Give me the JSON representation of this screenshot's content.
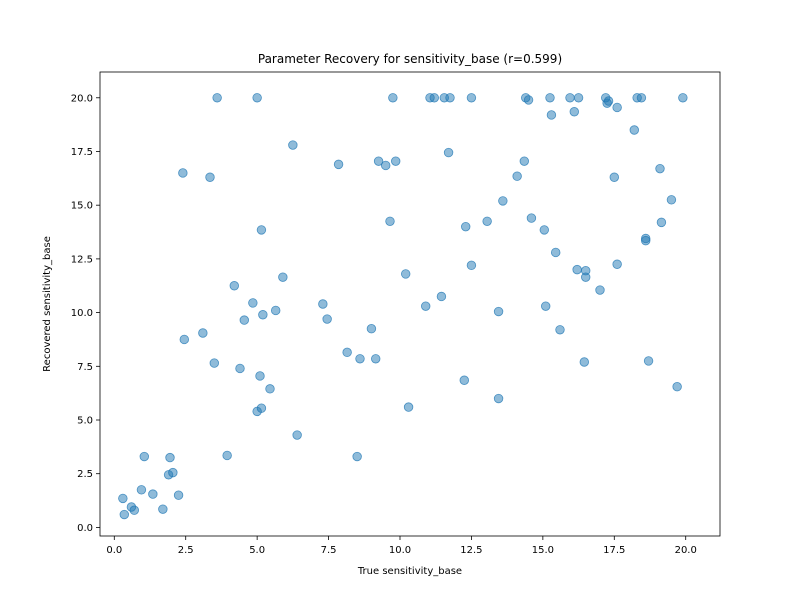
{
  "chart_data": {
    "type": "scatter",
    "title": "Parameter Recovery for sensitivity_base (r=0.599)",
    "xlabel": "True sensitivity_base",
    "ylabel": "Recovered sensitivity_base",
    "xlim": [
      -0.5,
      21.2
    ],
    "ylim": [
      -0.4,
      21.2
    ],
    "xticks": [
      0.0,
      2.5,
      5.0,
      7.5,
      10.0,
      12.5,
      15.0,
      17.5,
      20.0
    ],
    "xtick_labels": [
      "0.0",
      "2.5",
      "5.0",
      "7.5",
      "10.0",
      "12.5",
      "15.0",
      "17.5",
      "20.0"
    ],
    "yticks": [
      0.0,
      2.5,
      5.0,
      7.5,
      10.0,
      12.5,
      15.0,
      17.5,
      20.0
    ],
    "ytick_labels": [
      "0.0",
      "2.5",
      "5.0",
      "7.5",
      "10.0",
      "12.5",
      "15.0",
      "17.5",
      "20.0"
    ],
    "grid": false,
    "marker_color": "#1f77b4",
    "marker_opacity": 0.5,
    "points": [
      [
        0.3,
        1.35
      ],
      [
        0.35,
        0.6
      ],
      [
        0.6,
        0.95
      ],
      [
        0.7,
        0.8
      ],
      [
        0.95,
        1.75
      ],
      [
        1.05,
        3.3
      ],
      [
        1.35,
        1.55
      ],
      [
        1.7,
        0.85
      ],
      [
        1.9,
        2.45
      ],
      [
        1.95,
        3.25
      ],
      [
        2.05,
        2.55
      ],
      [
        2.25,
        1.5
      ],
      [
        2.4,
        16.5
      ],
      [
        2.45,
        8.75
      ],
      [
        3.1,
        9.05
      ],
      [
        3.35,
        16.3
      ],
      [
        3.5,
        7.65
      ],
      [
        3.6,
        20.0
      ],
      [
        3.95,
        3.35
      ],
      [
        4.2,
        11.25
      ],
      [
        4.4,
        7.4
      ],
      [
        4.55,
        9.65
      ],
      [
        4.85,
        10.45
      ],
      [
        5.0,
        20.0
      ],
      [
        5.0,
        5.4
      ],
      [
        5.1,
        7.05
      ],
      [
        5.15,
        5.55
      ],
      [
        5.15,
        13.85
      ],
      [
        5.2,
        9.9
      ],
      [
        5.45,
        6.45
      ],
      [
        5.65,
        10.1
      ],
      [
        5.9,
        11.65
      ],
      [
        6.25,
        17.8
      ],
      [
        6.4,
        4.3
      ],
      [
        7.3,
        10.4
      ],
      [
        7.45,
        9.7
      ],
      [
        7.85,
        16.9
      ],
      [
        8.15,
        8.15
      ],
      [
        8.5,
        3.3
      ],
      [
        8.6,
        7.85
      ],
      [
        9.0,
        9.25
      ],
      [
        9.15,
        7.85
      ],
      [
        9.25,
        17.05
      ],
      [
        9.5,
        16.85
      ],
      [
        9.65,
        14.25
      ],
      [
        9.75,
        20.0
      ],
      [
        9.85,
        17.05
      ],
      [
        10.2,
        11.8
      ],
      [
        10.3,
        5.6
      ],
      [
        10.9,
        10.3
      ],
      [
        11.05,
        20.0
      ],
      [
        11.2,
        20.0
      ],
      [
        11.45,
        10.75
      ],
      [
        11.55,
        20.0
      ],
      [
        11.7,
        17.45
      ],
      [
        11.75,
        20.0
      ],
      [
        12.25,
        6.85
      ],
      [
        12.3,
        14.0
      ],
      [
        12.5,
        12.2
      ],
      [
        12.5,
        20.0
      ],
      [
        13.05,
        14.25
      ],
      [
        13.45,
        10.05
      ],
      [
        13.45,
        6.0
      ],
      [
        13.6,
        15.2
      ],
      [
        14.1,
        16.35
      ],
      [
        14.35,
        17.05
      ],
      [
        14.4,
        20.0
      ],
      [
        14.5,
        19.9
      ],
      [
        14.6,
        14.4
      ],
      [
        15.05,
        13.85
      ],
      [
        15.1,
        10.3
      ],
      [
        15.25,
        20.0
      ],
      [
        15.3,
        19.2
      ],
      [
        15.45,
        12.8
      ],
      [
        15.6,
        9.2
      ],
      [
        15.95,
        20.0
      ],
      [
        16.1,
        19.35
      ],
      [
        16.2,
        12.0
      ],
      [
        16.25,
        20.0
      ],
      [
        16.45,
        7.7
      ],
      [
        16.5,
        11.95
      ],
      [
        16.5,
        11.65
      ],
      [
        17.0,
        11.05
      ],
      [
        17.2,
        20.0
      ],
      [
        17.25,
        19.75
      ],
      [
        17.3,
        19.85
      ],
      [
        17.5,
        16.3
      ],
      [
        17.6,
        19.55
      ],
      [
        17.6,
        12.25
      ],
      [
        18.2,
        18.5
      ],
      [
        18.3,
        20.0
      ],
      [
        18.45,
        20.0
      ],
      [
        18.6,
        13.45
      ],
      [
        18.6,
        13.35
      ],
      [
        18.7,
        7.75
      ],
      [
        19.1,
        16.7
      ],
      [
        19.15,
        14.2
      ],
      [
        19.5,
        15.25
      ],
      [
        19.7,
        6.55
      ],
      [
        19.9,
        20.0
      ]
    ]
  }
}
